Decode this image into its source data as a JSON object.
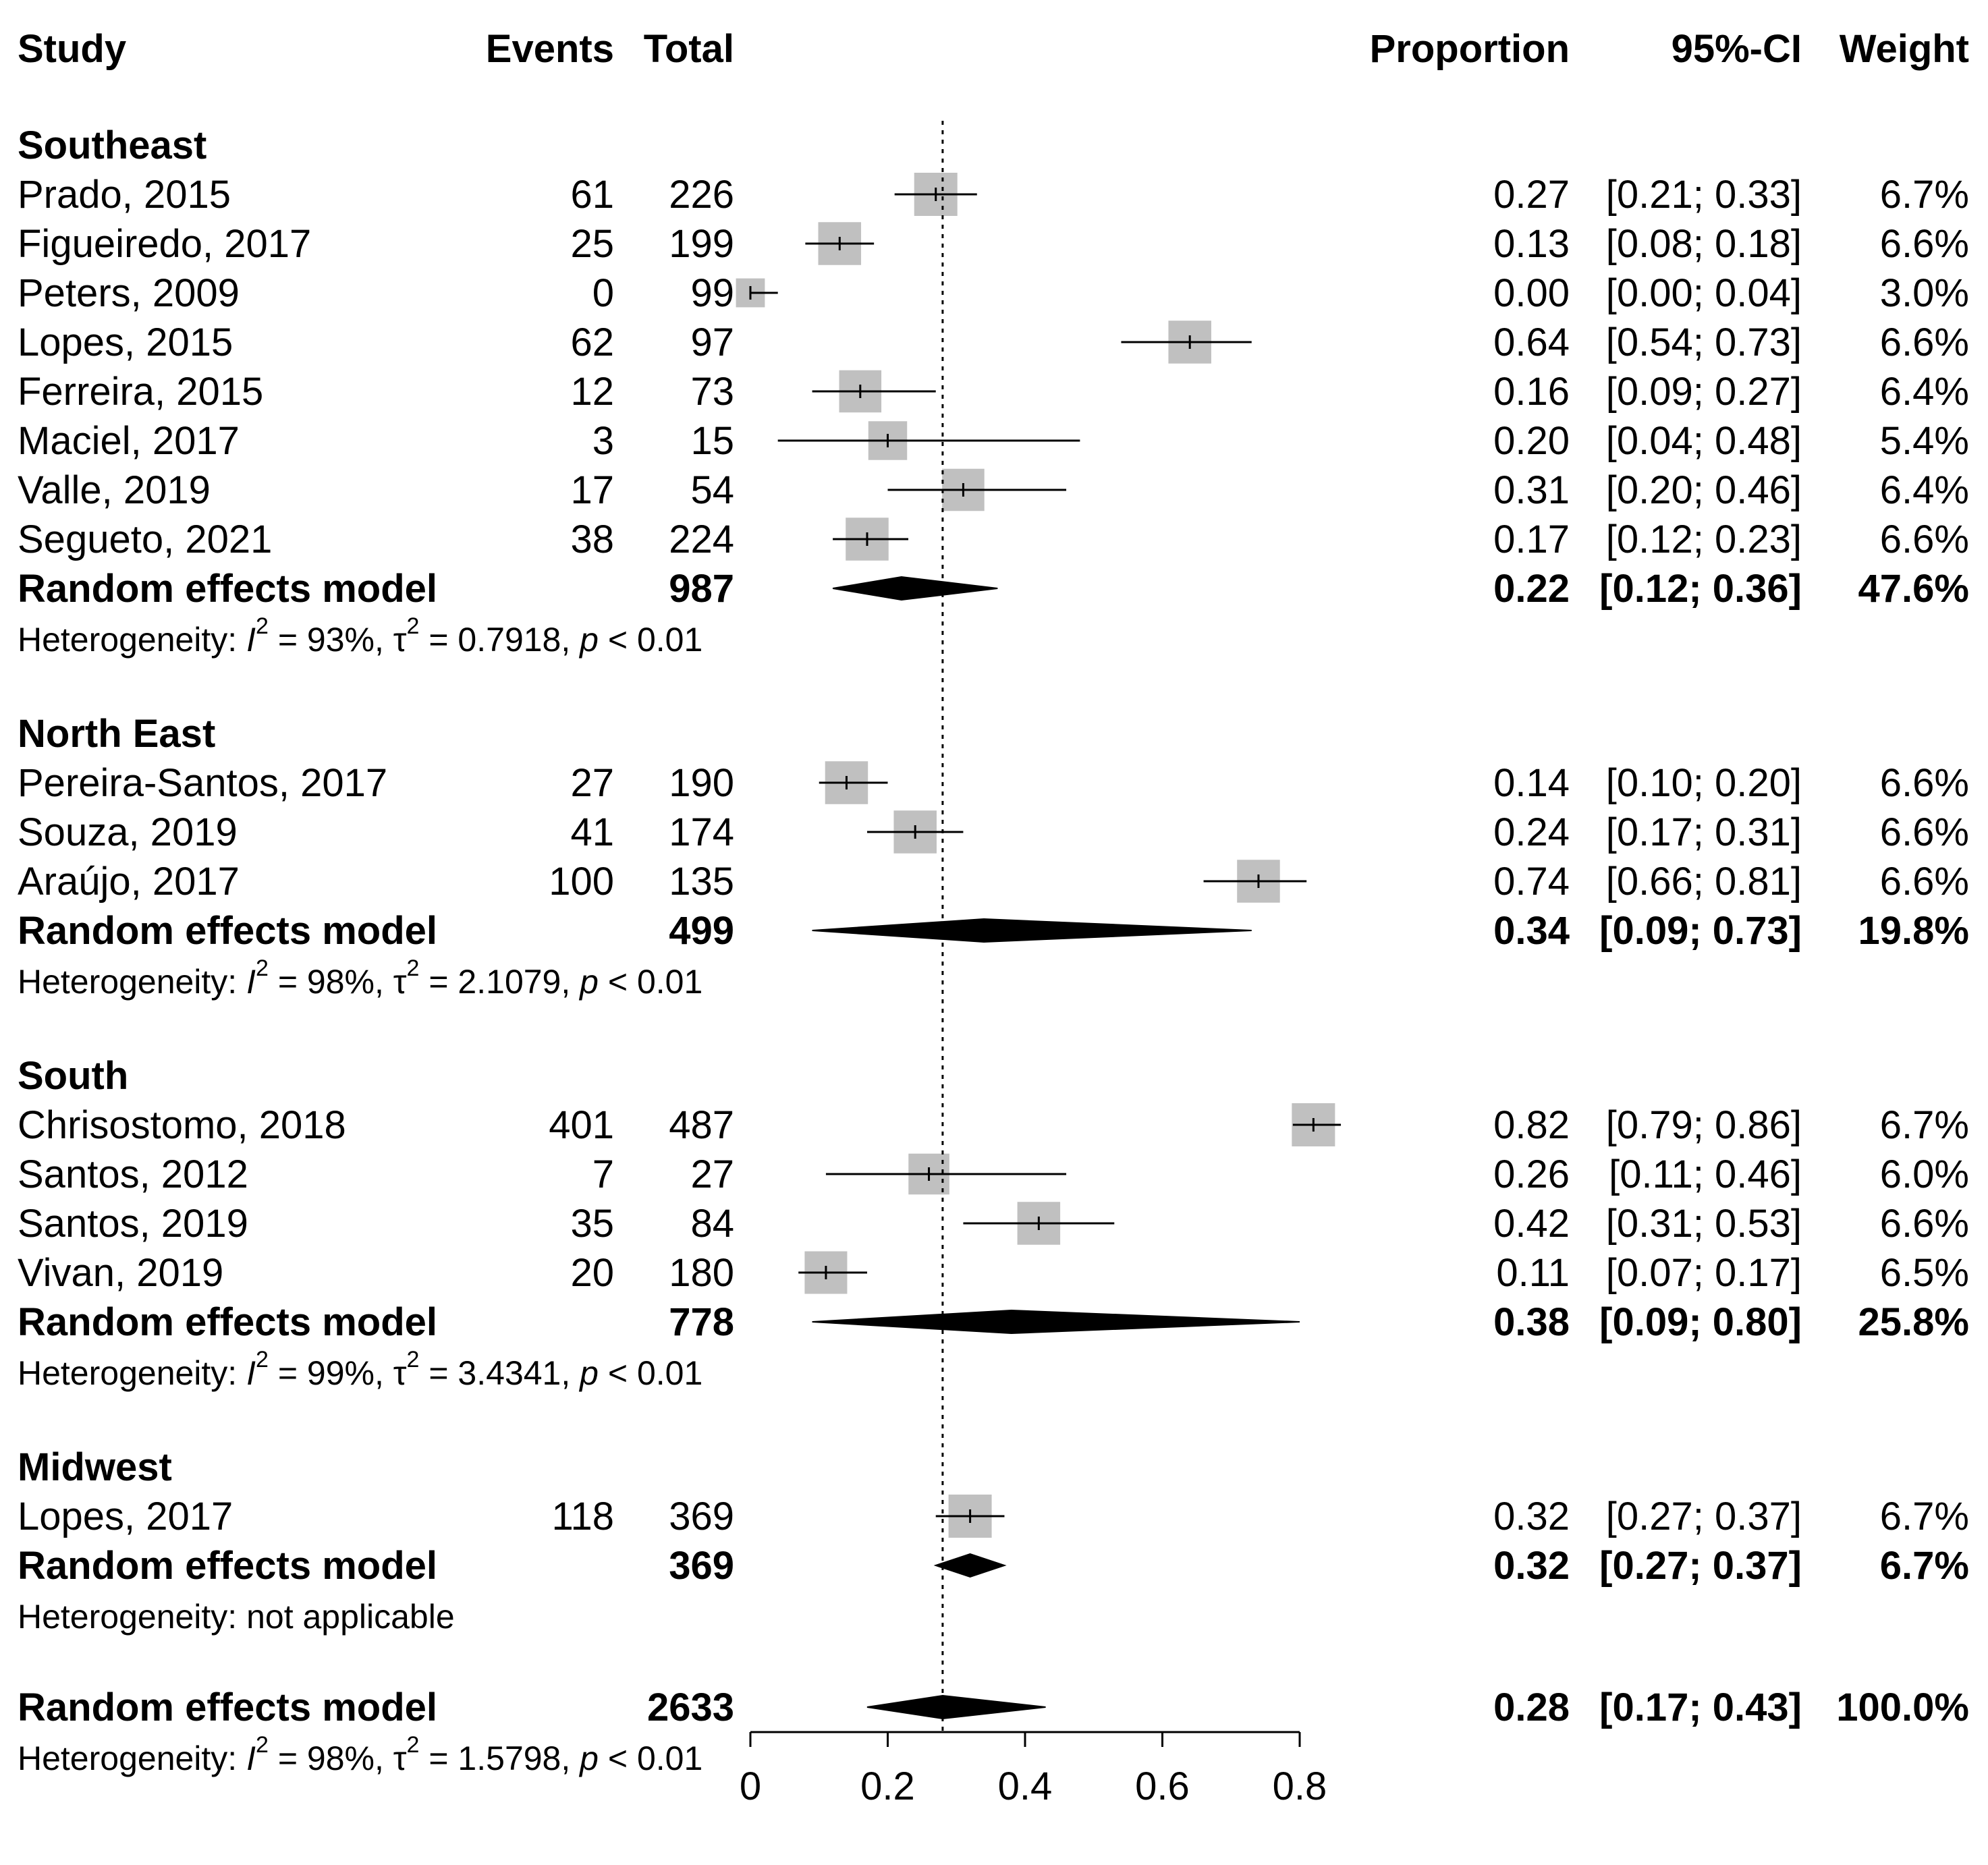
{
  "headers": {
    "study": "Study",
    "events": "Events",
    "total": "Total",
    "proportion": "Proportion",
    "ci": "95%-CI",
    "weight": "Weight"
  },
  "colors": {
    "box": "#c0c0c0",
    "line": "#000000"
  },
  "chart_data": {
    "type": "forest",
    "x_ticks": [
      "0",
      "0.2",
      "0.4",
      "0.6",
      "0.8"
    ],
    "x_range": [
      0,
      0.8
    ],
    "reference_line": 0.28,
    "groups": [
      {
        "name": "Southeast",
        "studies": [
          {
            "study": "Prado, 2015",
            "events": "61",
            "total": "226",
            "proportion": 0.27,
            "ci_low": 0.21,
            "ci_high": 0.33,
            "prop_text": "0.27",
            "ci_text": "[0.21; 0.33]",
            "weight": "6.7%",
            "weight_value": 6.7
          },
          {
            "study": "Figueiredo, 2017",
            "events": "25",
            "total": "199",
            "proportion": 0.13,
            "ci_low": 0.08,
            "ci_high": 0.18,
            "prop_text": "0.13",
            "ci_text": "[0.08; 0.18]",
            "weight": "6.6%",
            "weight_value": 6.6
          },
          {
            "study": "Peters, 2009",
            "events": "0",
            "total": "99",
            "proportion": 0.0,
            "ci_low": 0.0,
            "ci_high": 0.04,
            "prop_text": "0.00",
            "ci_text": "[0.00; 0.04]",
            "weight": "3.0%",
            "weight_value": 3.0
          },
          {
            "study": "Lopes, 2015",
            "events": "62",
            "total": "97",
            "proportion": 0.64,
            "ci_low": 0.54,
            "ci_high": 0.73,
            "prop_text": "0.64",
            "ci_text": "[0.54; 0.73]",
            "weight": "6.6%",
            "weight_value": 6.6
          },
          {
            "study": "Ferreira, 2015",
            "events": "12",
            "total": "73",
            "proportion": 0.16,
            "ci_low": 0.09,
            "ci_high": 0.27,
            "prop_text": "0.16",
            "ci_text": "[0.09; 0.27]",
            "weight": "6.4%",
            "weight_value": 6.4
          },
          {
            "study": "Maciel, 2017",
            "events": "3",
            "total": "15",
            "proportion": 0.2,
            "ci_low": 0.04,
            "ci_high": 0.48,
            "prop_text": "0.20",
            "ci_text": "[0.04; 0.48]",
            "weight": "5.4%",
            "weight_value": 5.4
          },
          {
            "study": "Valle, 2019",
            "events": "17",
            "total": "54",
            "proportion": 0.31,
            "ci_low": 0.2,
            "ci_high": 0.46,
            "prop_text": "0.31",
            "ci_text": "[0.20; 0.46]",
            "weight": "6.4%",
            "weight_value": 6.4
          },
          {
            "study": "Segueto, 2021",
            "events": "38",
            "total": "224",
            "proportion": 0.17,
            "ci_low": 0.12,
            "ci_high": 0.23,
            "prop_text": "0.17",
            "ci_text": "[0.12; 0.23]",
            "weight": "6.6%",
            "weight_value": 6.6
          }
        ],
        "model": {
          "label": "Random effects model",
          "total": "987",
          "proportion": 0.22,
          "ci_low": 0.12,
          "ci_high": 0.36,
          "prop_text": "0.22",
          "ci_text": "[0.12; 0.36]",
          "weight": "47.6%"
        },
        "heterogeneity": {
          "prefix": "Heterogeneity: ",
          "i2": "93%",
          "tau2": "0.7918",
          "p": "< 0.01",
          "text": ""
        }
      },
      {
        "name": "North East",
        "studies": [
          {
            "study": "Pereira-Santos, 2017",
            "events": "27",
            "total": "190",
            "proportion": 0.14,
            "ci_low": 0.1,
            "ci_high": 0.2,
            "prop_text": "0.14",
            "ci_text": "[0.10; 0.20]",
            "weight": "6.6%",
            "weight_value": 6.6
          },
          {
            "study": "Souza, 2019",
            "events": "41",
            "total": "174",
            "proportion": 0.24,
            "ci_low": 0.17,
            "ci_high": 0.31,
            "prop_text": "0.24",
            "ci_text": "[0.17; 0.31]",
            "weight": "6.6%",
            "weight_value": 6.6
          },
          {
            "study": "Araújo, 2017",
            "events": "100",
            "total": "135",
            "proportion": 0.74,
            "ci_low": 0.66,
            "ci_high": 0.81,
            "prop_text": "0.74",
            "ci_text": "[0.66; 0.81]",
            "weight": "6.6%",
            "weight_value": 6.6
          }
        ],
        "model": {
          "label": "Random effects model",
          "total": "499",
          "proportion": 0.34,
          "ci_low": 0.09,
          "ci_high": 0.73,
          "prop_text": "0.34",
          "ci_text": "[0.09; 0.73]",
          "weight": "19.8%"
        },
        "heterogeneity": {
          "prefix": "Heterogeneity: ",
          "i2": "98%",
          "tau2": "2.1079",
          "p": "< 0.01",
          "text": ""
        }
      },
      {
        "name": "South",
        "studies": [
          {
            "study": "Chrisostomo, 2018",
            "events": "401",
            "total": "487",
            "proportion": 0.82,
            "ci_low": 0.79,
            "ci_high": 0.86,
            "prop_text": "0.82",
            "ci_text": "[0.79; 0.86]",
            "weight": "6.7%",
            "weight_value": 6.7
          },
          {
            "study": "Santos, 2012",
            "events": "7",
            "total": "27",
            "proportion": 0.26,
            "ci_low": 0.11,
            "ci_high": 0.46,
            "prop_text": "0.26",
            "ci_text": "[0.11; 0.46]",
            "weight": "6.0%",
            "weight_value": 6.0
          },
          {
            "study": "Santos, 2019",
            "events": "35",
            "total": "84",
            "proportion": 0.42,
            "ci_low": 0.31,
            "ci_high": 0.53,
            "prop_text": "0.42",
            "ci_text": "[0.31; 0.53]",
            "weight": "6.6%",
            "weight_value": 6.6
          },
          {
            "study": "Vivan, 2019",
            "events": "20",
            "total": "180",
            "proportion": 0.11,
            "ci_low": 0.07,
            "ci_high": 0.17,
            "prop_text": "0.11",
            "ci_text": "[0.07; 0.17]",
            "weight": "6.5%",
            "weight_value": 6.5
          }
        ],
        "model": {
          "label": "Random effects model",
          "total": "778",
          "proportion": 0.38,
          "ci_low": 0.09,
          "ci_high": 0.8,
          "prop_text": "0.38",
          "ci_text": "[0.09; 0.80]",
          "weight": "25.8%"
        },
        "heterogeneity": {
          "prefix": "Heterogeneity: ",
          "i2": "99%",
          "tau2": "3.4341",
          "p": "< 0.01",
          "text": ""
        }
      },
      {
        "name": "Midwest",
        "studies": [
          {
            "study": "Lopes, 2017",
            "events": "118",
            "total": "369",
            "proportion": 0.32,
            "ci_low": 0.27,
            "ci_high": 0.37,
            "prop_text": "0.32",
            "ci_text": "[0.27; 0.37]",
            "weight": "6.7%",
            "weight_value": 6.7
          }
        ],
        "model": {
          "label": "Random effects model",
          "total": "369",
          "proportion": 0.32,
          "ci_low": 0.27,
          "ci_high": 0.37,
          "prop_text": "0.32",
          "ci_text": "[0.27; 0.37]",
          "weight": "6.7%"
        },
        "heterogeneity": {
          "text": "Heterogeneity: not applicable"
        }
      }
    ],
    "overall": {
      "label": "Random effects model",
      "total": "2633",
      "proportion": 0.28,
      "ci_low": 0.17,
      "ci_high": 0.43,
      "prop_text": "0.28",
      "ci_text": "[0.17; 0.43]",
      "weight": "100.0%",
      "heterogeneity": {
        "prefix": "Heterogeneity: ",
        "i2": "98%",
        "tau2": "1.5798",
        "p": "< 0.01",
        "text": ""
      }
    }
  }
}
